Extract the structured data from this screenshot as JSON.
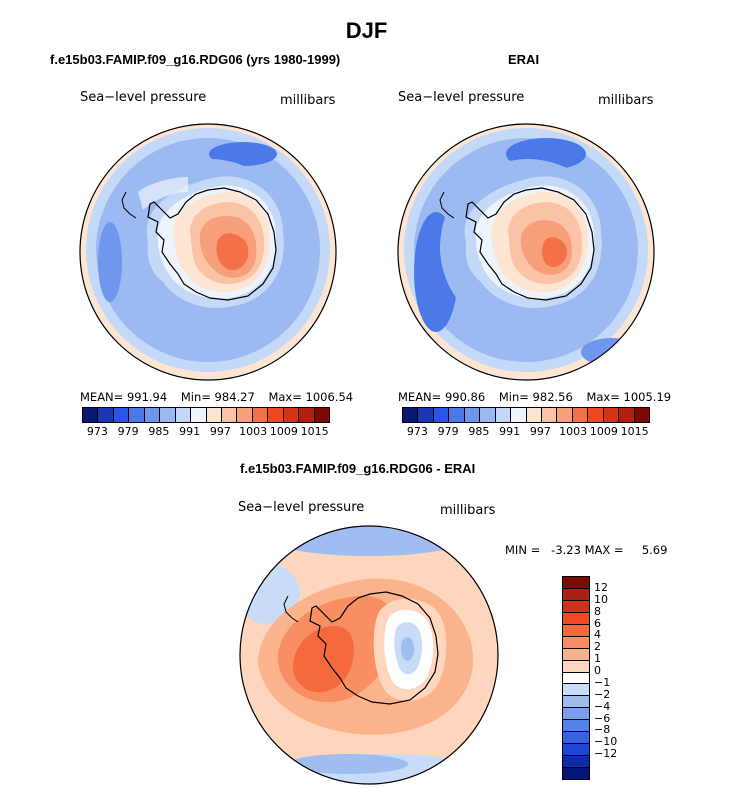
{
  "figure_title": "DJF",
  "colors": {
    "abs_palette": [
      "#0a1873",
      "#1c36b4",
      "#2a55e6",
      "#4b7ae8",
      "#6f97ee",
      "#9cbaf2",
      "#c4d8f7",
      "#eef4fb",
      "#fde5d3",
      "#fbc3a6",
      "#f79e7a",
      "#f37048",
      "#ec4a22",
      "#d4341a",
      "#b21e10",
      "#7d0a05"
    ],
    "diff_palette": [
      "#7d0a05",
      "#a8200f",
      "#d3311a",
      "#ef4a22",
      "#f56a3c",
      "#f98e62",
      "#fbb38c",
      "#fdd6bd",
      "#ffffff",
      "#c9dcf7",
      "#9fbdf1",
      "#7b9fed",
      "#5480e8",
      "#3762e4",
      "#1e44d8",
      "#0c2ca8",
      "#06157a"
    ]
  },
  "panels": [
    {
      "title": "f.e15b03.FAMIP.f09_g16.RDG06 (yrs 1980-1999)",
      "left_label": "Sea−level pressure",
      "right_label": "millibars",
      "stats": [
        "MEAN= 991.94",
        "Min= 984.27",
        "Max= 1006.54"
      ]
    },
    {
      "title": "ERAI",
      "left_label": "Sea−level pressure",
      "right_label": "millibars",
      "stats": [
        "MEAN= 990.86",
        "Min= 982.56",
        "Max= 1005.19"
      ]
    },
    {
      "title": "f.e15b03.FAMIP.f09_g16.RDG06 - ERAI",
      "left_label": "Sea−level pressure",
      "right_label": "millibars",
      "minmax": "MIN =   -3.23 MAX =     5.69"
    }
  ],
  "colorbar_abs_ticks": [
    "973",
    "979",
    "985",
    "991",
    "997",
    "1003",
    "1009",
    "1015"
  ],
  "colorbar_diff_ticks": [
    "12",
    "10",
    "8",
    "6",
    "4",
    "2",
    "1",
    "0",
    "−1",
    "−2",
    "−4",
    "−6",
    "−8",
    "−10",
    "−12"
  ],
  "chart_data": [
    {
      "type": "heatmap",
      "title": "f.e15b03.FAMIP.f09_g16.RDG06 (yrs 1980-1999)",
      "variable": "Sea−level pressure",
      "units": "millibars",
      "projection": "south polar stereographic",
      "contour_levels": [
        973,
        976,
        979,
        982,
        985,
        988,
        991,
        994,
        997,
        1000,
        1003,
        1006,
        1009,
        1012,
        1015
      ],
      "mean": 991.94,
      "min": 984.27,
      "max": 1006.54
    },
    {
      "type": "heatmap",
      "title": "ERAI",
      "variable": "Sea−level pressure",
      "units": "millibars",
      "projection": "south polar stereographic",
      "contour_levels": [
        973,
        976,
        979,
        982,
        985,
        988,
        991,
        994,
        997,
        1000,
        1003,
        1006,
        1009,
        1012,
        1015
      ],
      "mean": 990.86,
      "min": 982.56,
      "max": 1005.19
    },
    {
      "type": "heatmap",
      "title": "f.e15b03.FAMIP.f09_g16.RDG06 - ERAI",
      "variable": "Sea−level pressure",
      "units": "millibars",
      "projection": "south polar stereographic",
      "contour_levels": [
        -12,
        -10,
        -8,
        -6,
        -4,
        -2,
        -1,
        0,
        1,
        2,
        4,
        6,
        8,
        10,
        12
      ],
      "min": -3.23,
      "max": 5.69
    }
  ]
}
